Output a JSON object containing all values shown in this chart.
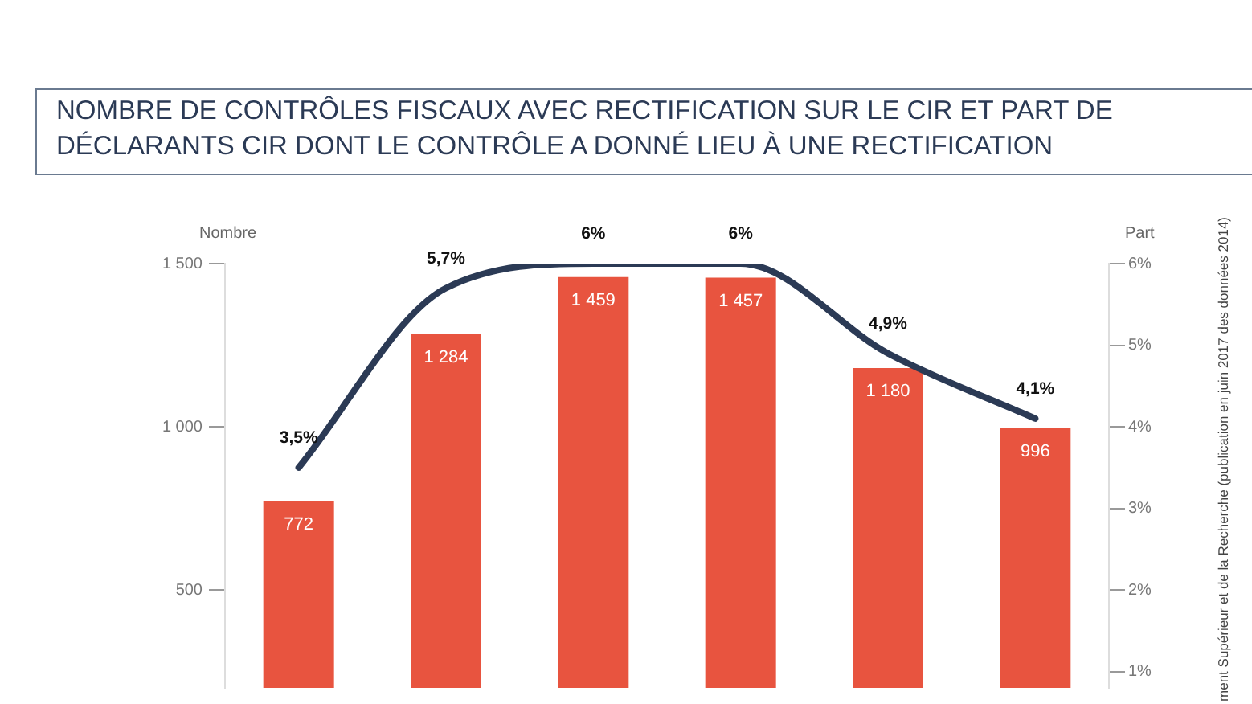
{
  "chart_data": {
    "type": "bar",
    "title": "NOMBRE DE CONTRÔLES FISCAUX AVEC RECTIFICATION SUR LE CIR ET PART DE DÉCLARANTS CIR DONT LE CONTRÔLE A DONNÉ LIEU À UNE RECTIFICATION",
    "ylabel": "Nombre",
    "y2label": "Part",
    "annotations": [
      "ment Supérieur et de la Recherche (publication en juin 2017 des données 2014)"
    ],
    "categories": [
      null,
      null,
      null,
      null,
      null,
      null
    ],
    "series": [
      {
        "color": "#e8543f",
        "values": [
          772,
          1284,
          1459,
          1457,
          1180,
          996
        ],
        "value_labels": [
          "772",
          "1 284",
          "1 459",
          "1 457",
          "1 180",
          "996"
        ]
      },
      {
        "type": "line",
        "axis": "y2",
        "color": "#2b3a55",
        "values": [
          3.5,
          5.7,
          6,
          6,
          4.9,
          4.1
        ],
        "value_labels": [
          "3,5%",
          "5,7%",
          "6%",
          "6%",
          "4,9%",
          "4,1%"
        ]
      }
    ],
    "ylim": [
      200,
      1500
    ],
    "yticks": [
      {
        "value": 500,
        "label": "500"
      },
      {
        "value": 1000,
        "label": "1 000"
      },
      {
        "value": 1500,
        "label": "1 500"
      }
    ],
    "y2lim": [
      0.8,
      6
    ],
    "y2ticks": [
      {
        "value": 1,
        "label": "1%"
      },
      {
        "value": 2,
        "label": "2%"
      },
      {
        "value": 3,
        "label": "3%"
      },
      {
        "value": 4,
        "label": "4%"
      },
      {
        "value": 5,
        "label": "5%"
      },
      {
        "value": 6,
        "label": "6%"
      }
    ],
    "grid": false,
    "legend": false,
    "marker": "none",
    "line_style": "solid",
    "tick_labels": "y"
  }
}
